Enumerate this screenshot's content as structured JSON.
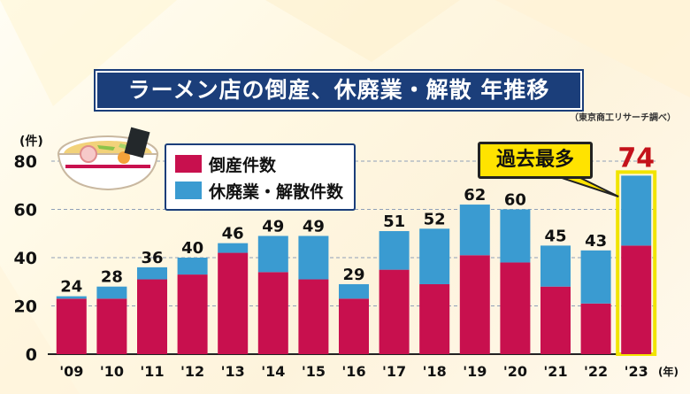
{
  "title": "ラーメン店の倒産、休廃業・解散 年推移",
  "source": "（東京商工リサーチ調べ）",
  "callout": "過去最多",
  "chart_data": {
    "type": "bar",
    "stacked": true,
    "categories": [
      "'09",
      "'10",
      "'11",
      "'12",
      "'13",
      "'14",
      "'15",
      "'16",
      "'17",
      "'18",
      "'19",
      "'20",
      "'21",
      "'22",
      "'23"
    ],
    "x_unit": "(年)",
    "y_unit": "(件)",
    "ylim": [
      0,
      80
    ],
    "yticks": [
      0,
      20,
      40,
      60,
      80
    ],
    "totals": [
      24,
      28,
      36,
      40,
      46,
      49,
      49,
      29,
      51,
      52,
      62,
      60,
      45,
      43,
      74
    ],
    "series": [
      {
        "name": "倒産件数",
        "color": "#c8104e",
        "values": [
          23,
          23,
          31,
          33,
          42,
          34,
          31,
          23,
          35,
          29,
          41,
          38,
          28,
          21,
          45
        ]
      },
      {
        "name": "休廃業・解散件数",
        "color": "#3a9bd1",
        "values": [
          1,
          5,
          5,
          7,
          4,
          15,
          18,
          6,
          16,
          23,
          21,
          22,
          17,
          22,
          29
        ]
      }
    ],
    "highlight_index": 14,
    "highlight_color": "#f1e400",
    "highlight_label_color": "#c4121a"
  }
}
